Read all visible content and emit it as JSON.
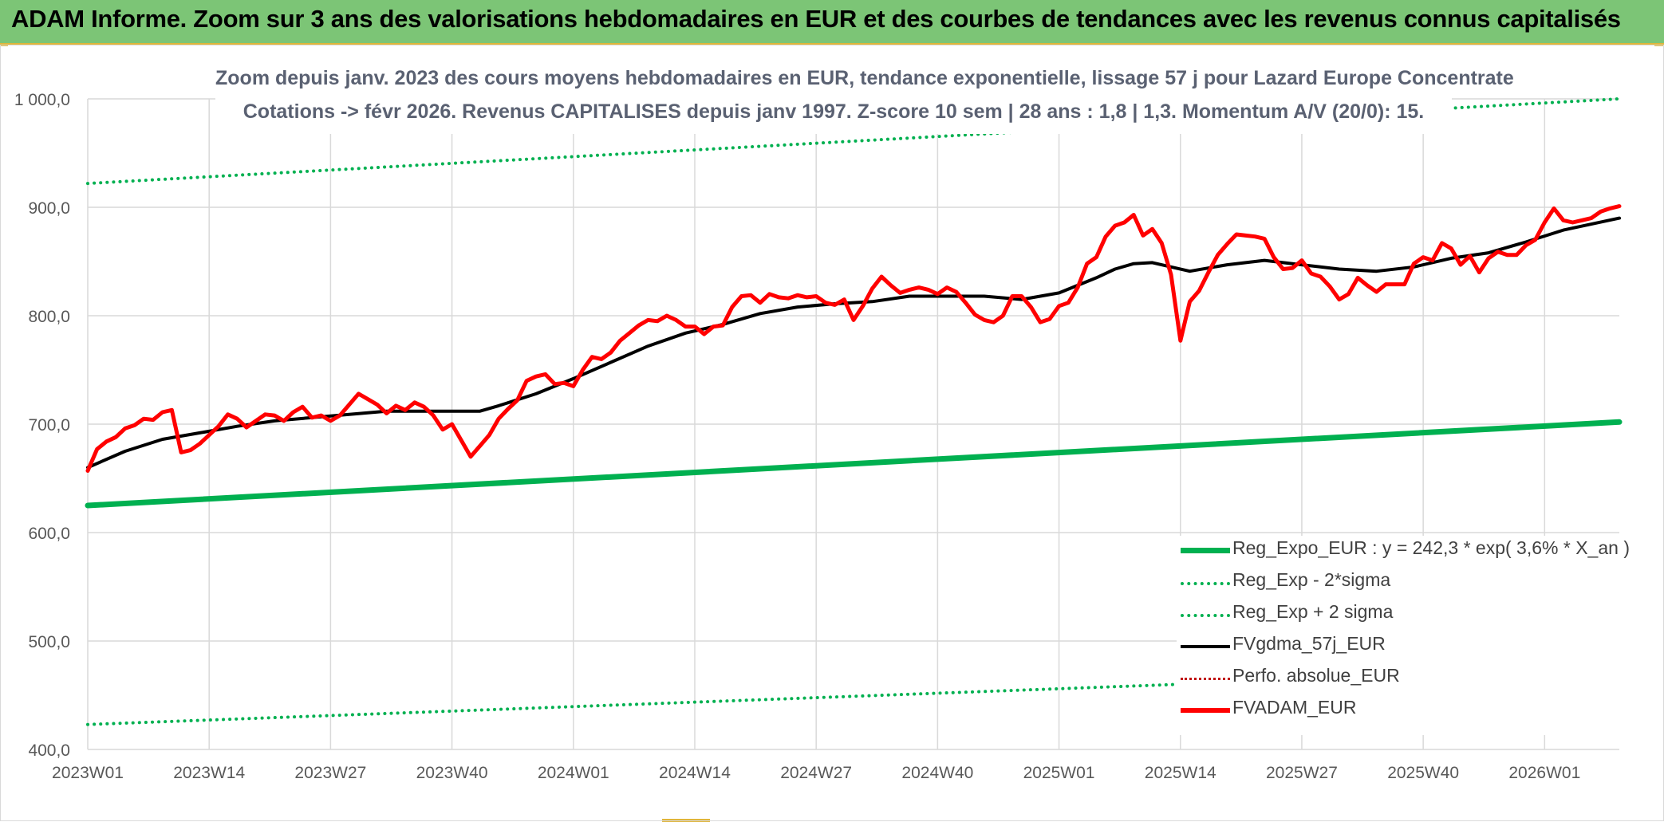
{
  "header": {
    "title": "ADAM Informe. Zoom sur 3 ans des valorisations hebdomadaires en EUR et des courbes de tendances avec les revenus connus capitalisés"
  },
  "colors": {
    "banner": "#7cc576",
    "regression": "#00b050",
    "sigma": "#00b050",
    "fvgdma": "#000000",
    "perfo": "#c00000",
    "fvadam": "#ff0000"
  },
  "chart_data": {
    "type": "line",
    "title": "Zoom depuis janv. 2023 des cours moyens hebdomadaires en EUR, tendance exponentielle, lissage 57 j pour Lazard Europe Concentrate",
    "subtitle": "Cotations -> févr 2026. Revenus CAPITALISES depuis janv 1997. Z-score 10 sem | 28 ans : 1,8 | 1,3. Momentum A/V (20/0): 15.",
    "xlabel": "",
    "ylabel": "",
    "ylim": [
      400,
      1000
    ],
    "y_ticks": [
      "400,0",
      "500,0",
      "600,0",
      "700,0",
      "800,0",
      "900,0",
      "1 000,0"
    ],
    "y_tick_values": [
      400,
      500,
      600,
      700,
      800,
      900,
      1000
    ],
    "x_ticks": [
      "2023W01",
      "2023W14",
      "2023W27",
      "2023W40",
      "2024W01",
      "2024W14",
      "2024W27",
      "2024W40",
      "2025W01",
      "2025W14",
      "2025W27",
      "2025W40",
      "2026W01"
    ],
    "x_tick_weeks": [
      0,
      13,
      26,
      39,
      52,
      65,
      78,
      91,
      104,
      117,
      130,
      143,
      156
    ],
    "week_count": 165,
    "grid": true,
    "legend_position": "bottom-right",
    "series": [
      {
        "name": "Reg_Expo_EUR : y = 242,3 * exp( 3,6% *  X_an )",
        "style": "solid-thick",
        "color": "#00b050",
        "x": [
          0,
          164
        ],
        "values": [
          625,
          702
        ]
      },
      {
        "name": "Reg_Exp - 2*sigma",
        "style": "dotted",
        "color": "#00b050",
        "x": [
          0,
          164
        ],
        "values": [
          423,
          475
        ]
      },
      {
        "name": "Reg_Exp + 2 sigma",
        "style": "dotted",
        "color": "#00b050",
        "x": [
          0,
          164
        ],
        "values": [
          922,
          1000
        ]
      },
      {
        "name": "FVgdma_57j_EUR",
        "style": "solid",
        "color": "#000000",
        "x": [
          0,
          4,
          8,
          12,
          16,
          20,
          24,
          28,
          32,
          36,
          40,
          42,
          44,
          48,
          52,
          56,
          60,
          64,
          68,
          72,
          76,
          80,
          84,
          88,
          92,
          96,
          100,
          104,
          108,
          110,
          112,
          114,
          118,
          122,
          126,
          130,
          134,
          138,
          142,
          146,
          150,
          154,
          158,
          164
        ],
        "values": [
          660,
          675,
          686,
          692,
          698,
          703,
          706,
          709,
          712,
          712,
          712,
          712,
          717,
          728,
          742,
          757,
          772,
          784,
          792,
          802,
          808,
          811,
          813,
          818,
          818,
          818,
          815,
          821,
          835,
          843,
          848,
          849,
          841,
          847,
          851,
          847,
          843,
          841,
          845,
          853,
          858,
          868,
          879,
          890
        ]
      },
      {
        "name": "Perfo. absolue_EUR",
        "style": "dotted",
        "color": "#c00000",
        "x": [],
        "values": []
      },
      {
        "name": "FVADAM_EUR",
        "style": "solid-thick",
        "color": "#ff0000",
        "x": [
          0,
          1,
          2,
          3,
          4,
          5,
          6,
          7,
          8,
          9,
          10,
          11,
          12,
          14,
          15,
          16,
          17,
          18,
          19,
          20,
          21,
          22,
          23,
          24,
          25,
          26,
          27,
          28,
          29,
          30,
          31,
          32,
          33,
          34,
          35,
          36,
          37,
          38,
          39,
          40,
          41,
          42,
          43,
          44,
          45,
          46,
          47,
          48,
          49,
          50,
          51,
          52,
          53,
          54,
          55,
          56,
          57,
          58,
          59,
          60,
          61,
          62,
          63,
          64,
          65,
          66,
          67,
          68,
          69,
          70,
          71,
          72,
          73,
          74,
          75,
          76,
          77,
          78,
          79,
          80,
          81,
          82,
          83,
          84,
          85,
          86,
          87,
          88,
          89,
          90,
          91,
          92,
          93,
          94,
          95,
          96,
          97,
          98,
          99,
          100,
          101,
          102,
          103,
          104,
          105,
          106,
          107,
          108,
          109,
          110,
          111,
          112,
          113,
          114,
          115,
          116,
          117,
          118,
          119,
          120,
          121,
          122,
          123,
          124,
          125,
          126,
          127,
          128,
          129,
          130,
          131,
          132,
          133,
          134,
          135,
          136,
          137,
          138,
          139,
          140,
          141,
          142,
          143,
          144,
          145,
          146,
          147,
          148,
          149,
          150,
          151,
          152,
          153,
          154,
          155,
          156,
          157,
          158,
          159,
          160,
          161,
          162,
          163,
          164
        ],
        "values": [
          657,
          677,
          684,
          688,
          696,
          699,
          705,
          704,
          711,
          713,
          674,
          676,
          682,
          698,
          709,
          705,
          697,
          703,
          709,
          708,
          703,
          711,
          716,
          706,
          708,
          703,
          708,
          718,
          728,
          723,
          718,
          710,
          717,
          713,
          720,
          716,
          708,
          695,
          700,
          685,
          670,
          680,
          690,
          705,
          714,
          722,
          740,
          744,
          746,
          737,
          738,
          735,
          750,
          762,
          760,
          766,
          777,
          784,
          791,
          796,
          795,
          800,
          796,
          790,
          790,
          783,
          790,
          791,
          808,
          818,
          819,
          812,
          820,
          817,
          816,
          819,
          817,
          818,
          812,
          810,
          815,
          796,
          809,
          825,
          836,
          828,
          821,
          824,
          826,
          824,
          820,
          826,
          822,
          812,
          801,
          796,
          794,
          800,
          818,
          818,
          808,
          794,
          797,
          809,
          812,
          826,
          848,
          854,
          873,
          883,
          886,
          893,
          874,
          880,
          867,
          838,
          777,
          813,
          823,
          840,
          856,
          866,
          875,
          874,
          873,
          871,
          854,
          843,
          844,
          851,
          839,
          836,
          827,
          815,
          820,
          835,
          828,
          822,
          829,
          829,
          829,
          848,
          854,
          851,
          867,
          862,
          847,
          855,
          840,
          853,
          859,
          856,
          856,
          865,
          870,
          886,
          899,
          888,
          886,
          888,
          890,
          896,
          899,
          901
        ]
      }
    ]
  }
}
